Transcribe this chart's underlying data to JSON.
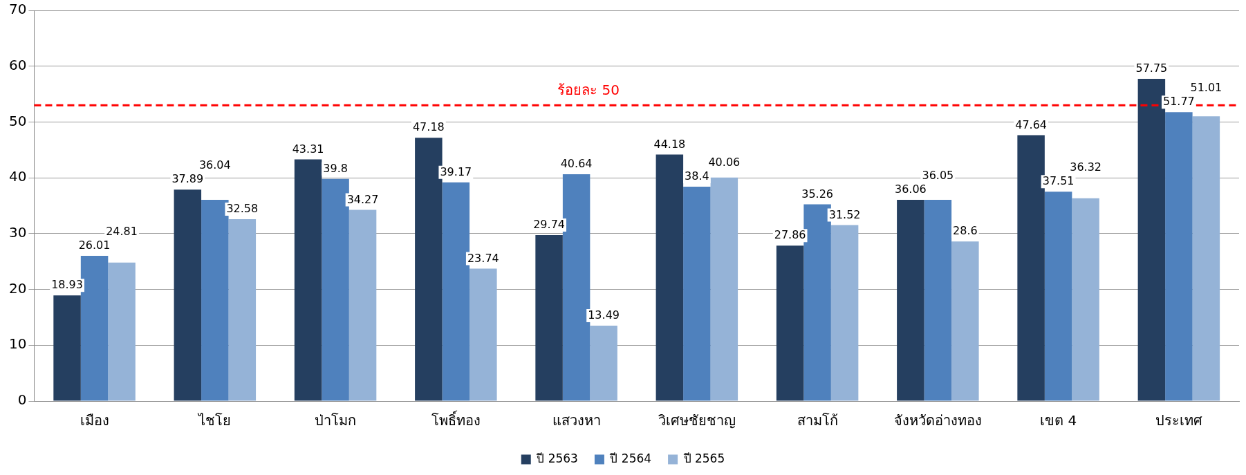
{
  "chart_data": {
    "type": "bar",
    "categories": [
      "เมือง",
      "ไชโย",
      "ป่าโมก",
      "โพธิ์ทอง",
      "แสวงหา",
      "วิเศษชัยชาญ",
      "สามโก้",
      "จังหวัดอ่างทอง",
      "เขต 4",
      "ประเทศ"
    ],
    "series": [
      {
        "name": "ปี 2563",
        "color": "#253f60",
        "values": [
          18.93,
          37.89,
          43.31,
          47.18,
          29.74,
          44.18,
          27.86,
          36.06,
          47.64,
          57.75
        ]
      },
      {
        "name": "ปี 2564",
        "color": "#4f81bd",
        "values": [
          26.01,
          36.04,
          39.8,
          39.17,
          40.64,
          38.4,
          35.26,
          36.05,
          37.51,
          51.77
        ]
      },
      {
        "name": "ปี 2565",
        "color": "#95b3d7",
        "values": [
          24.81,
          32.58,
          34.27,
          23.74,
          13.49,
          40.06,
          31.52,
          28.6,
          36.32,
          51.01
        ]
      }
    ],
    "ylim": [
      0,
      70
    ],
    "yticks": [
      0,
      10,
      20,
      30,
      40,
      50,
      60,
      70
    ],
    "grid": "y",
    "legend": "bottom",
    "data_labels": true,
    "ref_lines": [
      {
        "axis": "y",
        "value": 53,
        "label": "ร้อยละ 50",
        "color": "#ff0000",
        "line_style": "dashed"
      }
    ]
  }
}
